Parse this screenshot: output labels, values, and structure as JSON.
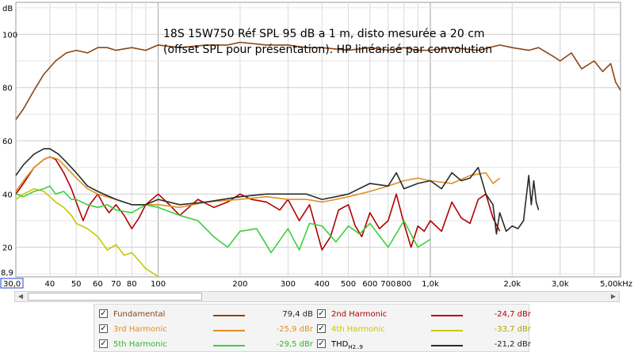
{
  "chart_data": {
    "type": "line",
    "title_lines": [
      "18S 15W750 Réf SPL 95 dB a 1 m, disto mesurée a 20 cm",
      "(offset SPL pour présentation). HP linéarisé par convolution"
    ],
    "ylabel": "dB",
    "xscale": "log",
    "xlim": [
      30,
      5000
    ],
    "ylim": [
      8.9,
      112
    ],
    "y_ticks": [
      20,
      40,
      60,
      80,
      100
    ],
    "y_bottom_label": "8,9",
    "x_left_label": "30,0",
    "x_ticks": [
      {
        "v": 40,
        "label": "40"
      },
      {
        "v": 50,
        "label": "50"
      },
      {
        "v": 60,
        "label": "60"
      },
      {
        "v": 70,
        "label": "70"
      },
      {
        "v": 80,
        "label": "80"
      },
      {
        "v": 100,
        "label": "100"
      },
      {
        "v": 200,
        "label": "200"
      },
      {
        "v": 300,
        "label": "300"
      },
      {
        "v": 400,
        "label": "400"
      },
      {
        "v": 500,
        "label": "500"
      },
      {
        "v": 600,
        "label": "600"
      },
      {
        "v": 700,
        "label": "700"
      },
      {
        "v": 800,
        "label": "800"
      },
      {
        "v": 1000,
        "label": "1,0k"
      },
      {
        "v": 2000,
        "label": "2,0k"
      },
      {
        "v": 3000,
        "label": "3,0k"
      },
      {
        "v": 5000,
        "label": "5,00kHz"
      }
    ],
    "grid": true,
    "series": [
      {
        "name": "Fundamental",
        "color": "#8b4513",
        "x": [
          30,
          32,
          35,
          38,
          42,
          46,
          50,
          55,
          60,
          65,
          70,
          80,
          90,
          100,
          120,
          150,
          180,
          200,
          250,
          300,
          350,
          400,
          500,
          600,
          700,
          800,
          900,
          1000,
          1200,
          1500,
          1800,
          2000,
          2300,
          2500,
          2800,
          3000,
          3300,
          3600,
          4000,
          4300,
          4600,
          4800,
          5000
        ],
        "y": [
          68,
          72,
          79,
          85,
          90,
          93,
          94,
          93,
          95,
          95,
          94,
          95,
          94,
          96,
          95,
          96,
          96,
          97,
          96,
          96,
          95,
          95,
          94,
          95,
          94,
          95,
          94,
          94,
          95,
          94,
          96,
          95,
          94,
          95,
          92,
          90,
          93,
          87,
          90,
          86,
          89,
          82,
          79
        ]
      },
      {
        "name": "2nd Harmonic",
        "color": "#b30000",
        "x": [
          30,
          32,
          35,
          38,
          40,
          42,
          45,
          48,
          50,
          53,
          56,
          60,
          63,
          66,
          70,
          75,
          80,
          85,
          90,
          100,
          110,
          120,
          140,
          160,
          180,
          200,
          220,
          250,
          280,
          300,
          330,
          360,
          400,
          430,
          460,
          500,
          530,
          560,
          600,
          650,
          700,
          750,
          800,
          850,
          900,
          950,
          1000,
          1100,
          1200,
          1300,
          1400,
          1500,
          1600,
          1700,
          1800
        ],
        "y": [
          40,
          44,
          50,
          53,
          54,
          53,
          48,
          42,
          37,
          30,
          36,
          40,
          36,
          33,
          36,
          32,
          27,
          31,
          36,
          40,
          36,
          32,
          38,
          35,
          37,
          40,
          38,
          37,
          34,
          38,
          30,
          36,
          19,
          24,
          34,
          36,
          28,
          24,
          33,
          27,
          30,
          40,
          29,
          20,
          28,
          26,
          30,
          26,
          37,
          31,
          29,
          38,
          40,
          31,
          26
        ]
      },
      {
        "name": "3rd Harmonic",
        "color": "#e09020",
        "x": [
          30,
          32,
          35,
          38,
          40,
          43,
          46,
          50,
          55,
          60,
          70,
          80,
          90,
          100,
          120,
          150,
          200,
          250,
          300,
          350,
          400,
          450,
          500,
          600,
          700,
          800,
          900,
          1000,
          1200,
          1400,
          1600,
          1700,
          1800
        ],
        "y": [
          41,
          45,
          50,
          53,
          54,
          53,
          50,
          46,
          42,
          40,
          38,
          36,
          36,
          36,
          35,
          37,
          38,
          39,
          38,
          38,
          37,
          38,
          39,
          41,
          43,
          45,
          46,
          45,
          44,
          47,
          48,
          44,
          46
        ]
      },
      {
        "name": "4th Harmonic",
        "color": "#c8c800",
        "x": [
          30,
          32,
          35,
          38,
          40,
          42,
          45,
          48,
          50,
          55,
          60,
          65,
          70,
          75,
          80,
          85,
          90,
          100
        ],
        "y": [
          38,
          40,
          42,
          41,
          39,
          37,
          35,
          32,
          29,
          27,
          24,
          19,
          21,
          17,
          18,
          15,
          12,
          9
        ]
      },
      {
        "name": "5th Harmonic",
        "color": "#3ccf3c",
        "x": [
          30,
          32,
          35,
          38,
          40,
          42,
          45,
          48,
          50,
          55,
          60,
          65,
          70,
          80,
          90,
          100,
          120,
          140,
          160,
          180,
          200,
          230,
          260,
          300,
          330,
          360,
          400,
          450,
          500,
          550,
          600,
          700,
          800,
          900,
          1000
        ],
        "y": [
          40,
          39,
          41,
          42,
          43,
          40,
          41,
          38,
          38,
          36,
          35,
          36,
          34,
          33,
          36,
          35,
          32,
          30,
          24,
          20,
          26,
          27,
          18,
          27,
          19,
          29,
          28,
          22,
          28,
          25,
          29,
          20,
          30,
          20,
          23
        ]
      },
      {
        "name": "THD",
        "color": "#2a2a2a",
        "x": [
          30,
          32,
          35,
          38,
          40,
          43,
          46,
          50,
          55,
          60,
          70,
          80,
          90,
          100,
          120,
          150,
          200,
          250,
          300,
          350,
          400,
          450,
          500,
          600,
          700,
          750,
          800,
          900,
          1000,
          1100,
          1200,
          1300,
          1400,
          1500,
          1600,
          1700,
          1750,
          1800,
          1900,
          2000,
          2100,
          2200,
          2300,
          2350,
          2400,
          2450,
          2500
        ],
        "y": [
          47,
          51,
          55,
          57,
          57,
          55,
          52,
          48,
          43,
          41,
          38,
          36,
          36,
          38,
          36,
          37,
          39,
          40,
          40,
          40,
          38,
          39,
          40,
          44,
          43,
          48,
          42,
          44,
          45,
          42,
          48,
          45,
          46,
          50,
          40,
          36,
          25,
          33,
          26,
          28,
          27,
          30,
          47,
          36,
          45,
          37,
          34
        ]
      }
    ]
  },
  "legend": {
    "items": [
      {
        "name": "Fundamental",
        "value": "79,4 dB",
        "color": "#8b4513"
      },
      {
        "name": "2nd Harmonic",
        "value": "-24,7 dBr",
        "color": "#b30000"
      },
      {
        "name": "3rd Harmonic",
        "value": "-25,9 dBr",
        "color": "#e09020"
      },
      {
        "name": "4th Harmonic",
        "value": "-33,7 dBr",
        "color": "#c8c800"
      },
      {
        "name": "5th Harmonic",
        "value": "-29,5 dBr",
        "color": "#3ccf3c"
      },
      {
        "name": "THD",
        "subscript": "H2..9",
        "value": "-21,2 dBr",
        "color": "#2a2a2a"
      }
    ],
    "check_glyph": "✓"
  },
  "scrollbar": {
    "left_arrow": "◀",
    "right_arrow": "▶"
  }
}
